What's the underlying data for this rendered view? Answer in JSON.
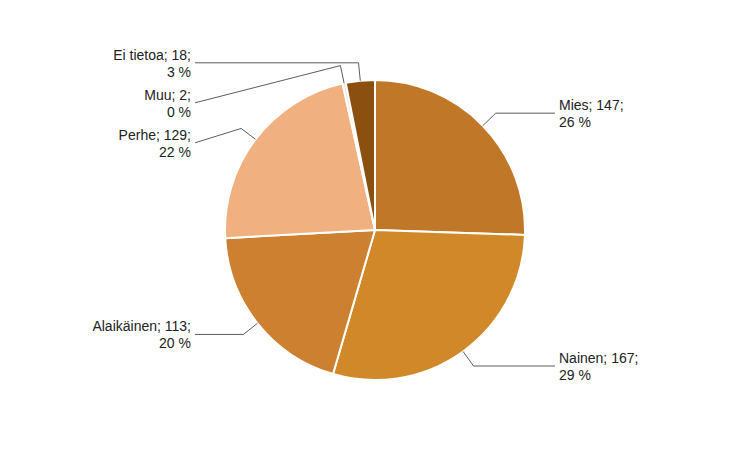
{
  "chart_data": {
    "type": "pie",
    "categories": [
      "Mies",
      "Nainen",
      "Alaikäinen",
      "Perhe",
      "Muu",
      "Ei tietoa"
    ],
    "values": [
      147,
      167,
      113,
      129,
      2,
      18
    ],
    "value_labels": [
      "Mies; 147;",
      "Nainen; 167;",
      "Alaikäinen; 113;",
      "Perhe; 129;",
      "Muu; 2;",
      "Ei tietoa; 18;"
    ],
    "percents": [
      26,
      29,
      20,
      22,
      0,
      3
    ],
    "percent_labels": [
      "26 %",
      "29 %",
      "20 %",
      "22 %",
      "0 %",
      "3 %"
    ],
    "colors": [
      "#C07828",
      "#D08828",
      "#CC8030",
      "#F0B080",
      "#F8DDD0",
      "#8B5010"
    ],
    "data_labels": true
  }
}
